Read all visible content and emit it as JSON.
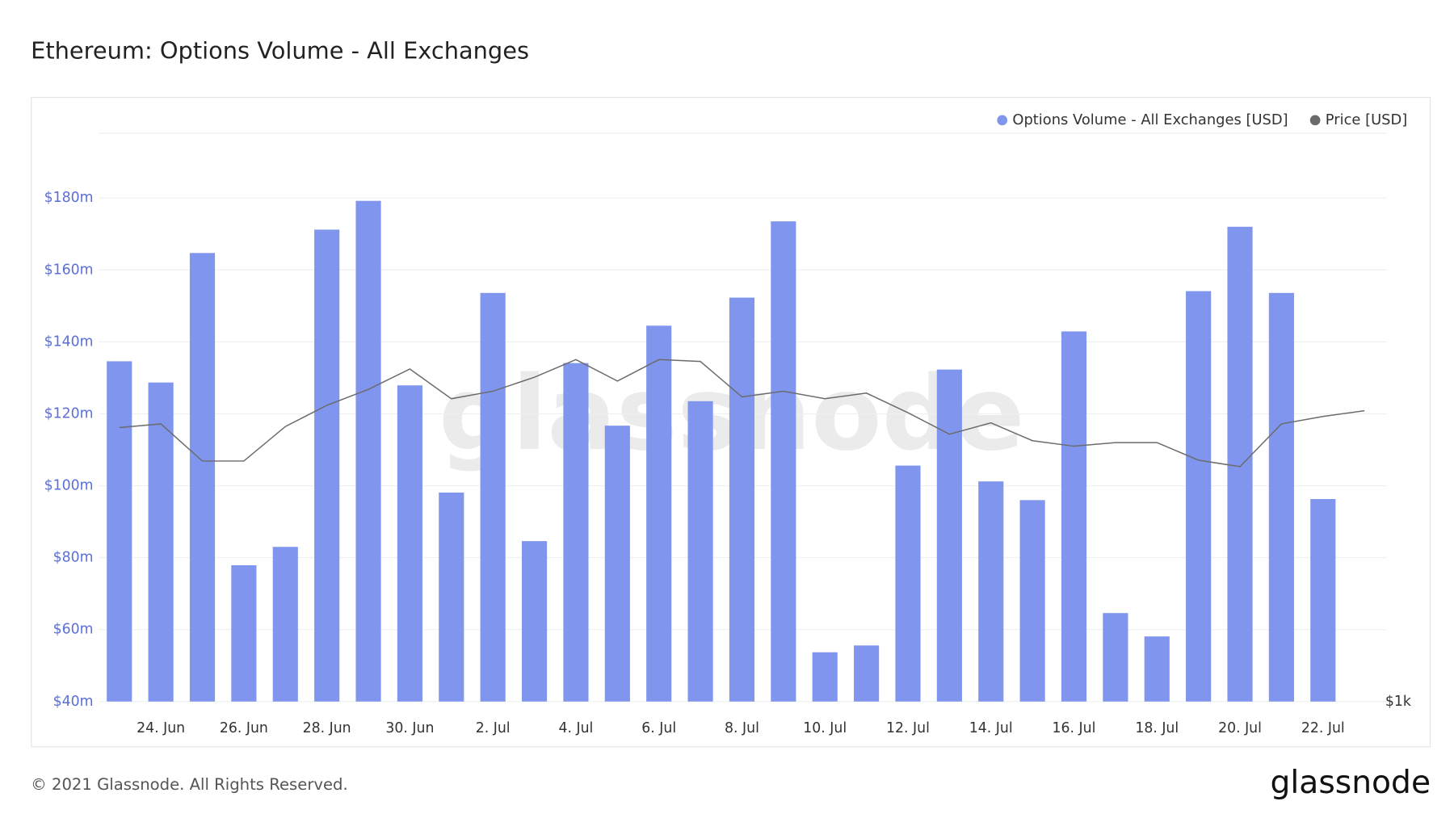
{
  "chart_data": {
    "type": "bar",
    "title": "Ethereum: Options Volume - All Exchanges",
    "watermark": "glassnode",
    "categories": [
      null,
      "24. Jun",
      null,
      "26. Jun",
      null,
      "28. Jun",
      null,
      "30. Jun",
      null,
      "2. Jul",
      null,
      "4. Jul",
      null,
      "6. Jul",
      null,
      "8. Jul",
      null,
      "10. Jul",
      null,
      "12. Jul",
      null,
      "14. Jul",
      null,
      "16. Jul",
      null,
      "18. Jul",
      null,
      "20. Jul",
      null,
      "22. Jul",
      null
    ],
    "series": [
      {
        "name": "Options Volume - All Exchanges [USD]",
        "color": "#8096ee",
        "type": "bar",
        "values": [
          134.6,
          128.7,
          164.7,
          77.9,
          83,
          171.2,
          179.2,
          127.9,
          98.1,
          153.6,
          84.6,
          134.1,
          116.7,
          144.5,
          123.5,
          152.3,
          173.5,
          53.7,
          55.6,
          105.6,
          132.3,
          101.2,
          96,
          142.9,
          64.6,
          58.1,
          154.1,
          172,
          153.6,
          96.3,
          null
        ]
      },
      {
        "name": "Price [USD]",
        "color": "#6b6b6b",
        "type": "line",
        "axis": "y2",
        "values": [
          1972,
          1990,
          1815,
          1815,
          1977,
          2084,
          2168,
          2280,
          2118,
          2158,
          2234,
          2334,
          2213,
          2334,
          2323,
          2128,
          2158,
          2118,
          2148,
          2046,
          1940,
          1995,
          1909,
          1883,
          1900,
          1900,
          1819,
          1790,
          1990,
          2027,
          2056
        ]
      }
    ],
    "ylim": [
      40,
      198
    ],
    "yticks": [
      {
        "value": 40,
        "label": "$40m"
      },
      {
        "value": 60,
        "label": "$60m"
      },
      {
        "value": 80,
        "label": "$80m"
      },
      {
        "value": 100,
        "label": "$100m"
      },
      {
        "value": 120,
        "label": "$120m"
      },
      {
        "value": 140,
        "label": "$140m"
      },
      {
        "value": 160,
        "label": "$160m"
      },
      {
        "value": 180,
        "label": "$180m"
      }
    ],
    "y2lim": [
      1000,
      4090
    ],
    "y2scale": "log",
    "y2ticks": [
      {
        "value": 1000,
        "label": "$1k"
      }
    ],
    "grid": true,
    "legend": "top-right"
  },
  "footer": {
    "copyright": "© 2021 Glassnode. All Rights Reserved.",
    "logo": "glassnode"
  }
}
